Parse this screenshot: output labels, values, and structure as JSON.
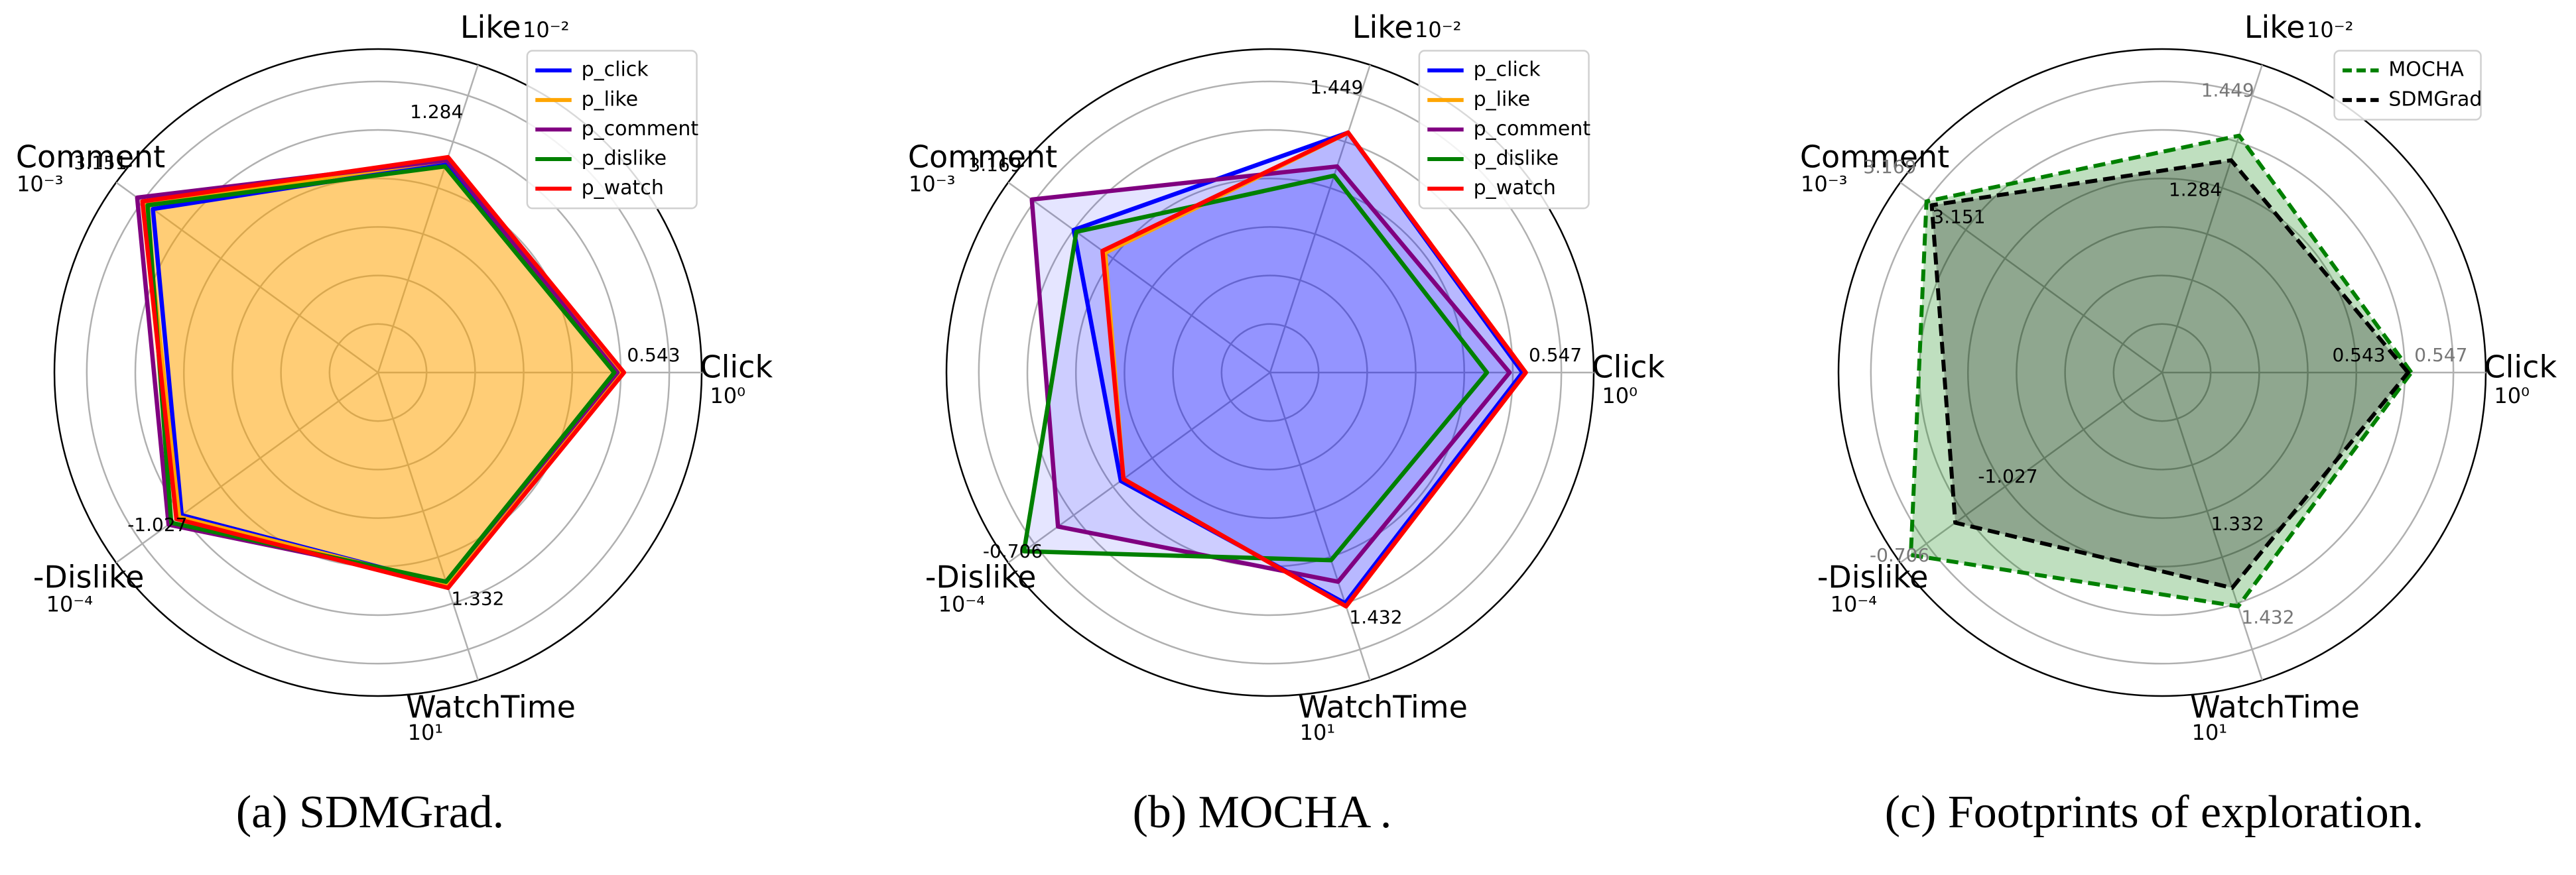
{
  "chart_data": [
    {
      "type": "radar",
      "caption": "(a) SDMGrad.",
      "axes": [
        {
          "name": "Click",
          "scale": "10⁰"
        },
        {
          "name": "Like",
          "scale": "10⁻²"
        },
        {
          "name": "Comment",
          "scale": "10⁻³"
        },
        {
          "name": "-Dislike",
          "scale": "10⁻⁴"
        },
        {
          "name": "WatchTime",
          "scale": "10¹"
        }
      ],
      "rlim": [
        0,
        1
      ],
      "rgrid": [
        0.15,
        0.3,
        0.45,
        0.6,
        0.75,
        0.9
      ],
      "fill_color": "#ffa500",
      "fill_opacity": 0.14,
      "legend": "upper right",
      "point_labels": [
        "0.543",
        "1.284",
        "3.151",
        "-1.027",
        "1.332"
      ],
      "series": [
        {
          "name": "p_click",
          "color": "#0000ff",
          "values": [
            0.74,
            0.68,
            0.86,
            0.75,
            0.69
          ]
        },
        {
          "name": "p_like",
          "color": "#ffa500",
          "values": [
            0.75,
            0.69,
            0.89,
            0.76,
            0.69
          ]
        },
        {
          "name": "p_comment",
          "color": "#800080",
          "values": [
            0.74,
            0.69,
            0.92,
            0.8,
            0.68
          ]
        },
        {
          "name": "p_dislike",
          "color": "#008000",
          "values": [
            0.73,
            0.67,
            0.88,
            0.79,
            0.68
          ]
        },
        {
          "name": "p_watch",
          "color": "#ff0000",
          "values": [
            0.76,
            0.7,
            0.9,
            0.77,
            0.7
          ]
        }
      ]
    },
    {
      "type": "radar",
      "caption": "(b) MOCHA .",
      "axes": [
        {
          "name": "Click",
          "scale": "10⁰"
        },
        {
          "name": "Like",
          "scale": "10⁻²"
        },
        {
          "name": "Comment",
          "scale": "10⁻³"
        },
        {
          "name": "-Dislike",
          "scale": "10⁻⁴"
        },
        {
          "name": "WatchTime",
          "scale": "10¹"
        }
      ],
      "rlim": [
        0,
        1
      ],
      "rgrid": [
        0.15,
        0.3,
        0.45,
        0.6,
        0.75,
        0.9
      ],
      "fill_color": "#0000ff",
      "fill_opacity": 0.1,
      "legend": "upper right",
      "point_labels": [
        "0.547",
        "1.449",
        "3.169",
        "-0.706",
        "1.432"
      ],
      "series": [
        {
          "name": "p_click",
          "color": "#0000ff",
          "values": [
            0.78,
            0.78,
            0.75,
            0.57,
            0.75
          ]
        },
        {
          "name": "p_like",
          "color": "#ffa500",
          "values": [
            0.79,
            0.78,
            0.63,
            0.56,
            0.76
          ]
        },
        {
          "name": "p_comment",
          "color": "#800080",
          "values": [
            0.74,
            0.67,
            0.91,
            0.81,
            0.68
          ]
        },
        {
          "name": "p_dislike",
          "color": "#008000",
          "values": [
            0.67,
            0.64,
            0.74,
            0.94,
            0.61
          ]
        },
        {
          "name": "p_watch",
          "color": "#ff0000",
          "values": [
            0.79,
            0.78,
            0.64,
            0.56,
            0.76
          ]
        }
      ]
    },
    {
      "type": "radar",
      "caption": "(c) Footprints of exploration.",
      "axes": [
        {
          "name": "Click",
          "scale": "10⁰"
        },
        {
          "name": "Like",
          "scale": "10⁻²"
        },
        {
          "name": "Comment",
          "scale": "10⁻³"
        },
        {
          "name": "-Dislike",
          "scale": "10⁻⁴"
        },
        {
          "name": "WatchTime",
          "scale": "10¹"
        }
      ],
      "rlim": [
        0,
        1
      ],
      "rgrid": [
        0.15,
        0.3,
        0.45,
        0.6,
        0.75,
        0.9
      ],
      "fill_opacity": 0.25,
      "legend": "upper right",
      "series": [
        {
          "name": "MOCHA",
          "color": "#008000",
          "linestyle": "dashed",
          "label_color": "#777777",
          "point_labels": [
            "0.547",
            "1.449",
            "3.169",
            "-0.706",
            "1.432"
          ],
          "values": [
            0.77,
            0.77,
            0.9,
            0.96,
            0.76
          ]
        },
        {
          "name": "SDMGrad",
          "color": "#000000",
          "linestyle": "dashed",
          "label_color": "#000000",
          "point_labels": [
            "0.543",
            "1.284",
            "3.151",
            "-1.027",
            "1.332"
          ],
          "values": [
            0.76,
            0.69,
            0.88,
            0.79,
            0.7
          ]
        }
      ]
    }
  ]
}
